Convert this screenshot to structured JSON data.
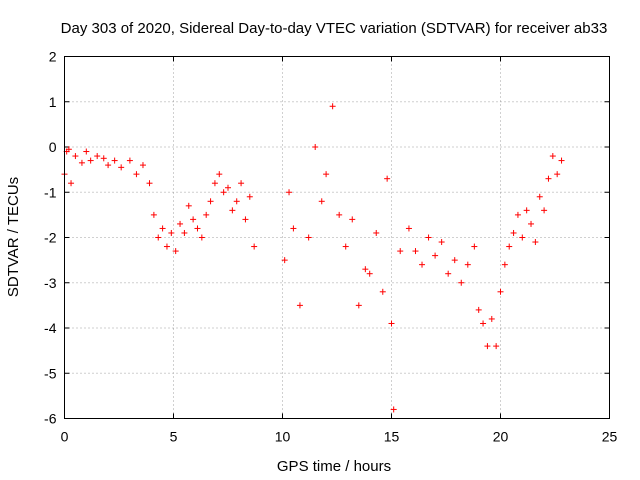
{
  "chart_data": {
    "type": "scatter",
    "title": "Day 303 of 2020, Sidereal Day-to-day VTEC variation (SDTVAR) for receiver ab33",
    "xlabel": "GPS time / hours",
    "ylabel": "SDTVAR / TECUs",
    "xlim": [
      0,
      25
    ],
    "ylim": [
      -6,
      2
    ],
    "xticks": [
      0,
      5,
      10,
      15,
      20,
      25
    ],
    "yticks": [
      -6,
      -5,
      -4,
      -3,
      -2,
      -1,
      0,
      1,
      2
    ],
    "grid": true,
    "marker": "+",
    "marker_color": "#ff0000",
    "series": [
      {
        "name": "SDTVAR",
        "x": [
          0.0,
          0.1,
          0.2,
          0.3,
          0.5,
          0.8,
          1.0,
          1.2,
          1.5,
          1.8,
          2.0,
          2.3,
          2.6,
          3.0,
          3.3,
          3.6,
          3.9,
          4.1,
          4.3,
          4.5,
          4.7,
          4.9,
          5.1,
          5.3,
          5.5,
          5.7,
          5.9,
          6.1,
          6.3,
          6.5,
          6.7,
          6.9,
          7.1,
          7.3,
          7.5,
          7.7,
          7.9,
          8.1,
          8.3,
          8.5,
          8.7,
          10.1,
          10.3,
          10.5,
          10.8,
          11.2,
          11.5,
          11.8,
          12.0,
          12.3,
          12.6,
          12.9,
          13.2,
          13.5,
          13.8,
          14.0,
          14.3,
          14.6,
          14.8,
          15.0,
          15.1,
          15.4,
          15.8,
          16.1,
          16.4,
          16.7,
          17.0,
          17.3,
          17.6,
          17.9,
          18.2,
          18.5,
          18.8,
          19.0,
          19.2,
          19.4,
          19.6,
          19.8,
          20.0,
          20.2,
          20.4,
          20.6,
          20.8,
          21.0,
          21.2,
          21.4,
          21.6,
          21.8,
          22.0,
          22.2,
          22.4,
          22.6,
          22.8
        ],
        "y": [
          -0.6,
          -0.1,
          -0.05,
          -0.8,
          -0.2,
          -0.35,
          -0.1,
          -0.3,
          -0.2,
          -0.25,
          -0.4,
          -0.3,
          -0.45,
          -0.3,
          -0.6,
          -0.4,
          -0.8,
          -1.5,
          -2.0,
          -1.8,
          -2.2,
          -1.9,
          -2.3,
          -1.7,
          -1.9,
          -1.3,
          -1.6,
          -1.8,
          -2.0,
          -1.5,
          -1.2,
          -0.8,
          -0.6,
          -1.0,
          -0.9,
          -1.4,
          -1.2,
          -0.8,
          -1.6,
          -1.1,
          -2.2,
          -2.5,
          -1.0,
          -1.8,
          -3.5,
          -2.0,
          0.0,
          -1.2,
          -0.6,
          0.9,
          -1.5,
          -2.2,
          -1.6,
          -3.5,
          -2.7,
          -2.8,
          -1.9,
          -3.2,
          -0.7,
          -3.9,
          -5.8,
          -2.3,
          -1.8,
          -2.3,
          -2.6,
          -2.0,
          -2.4,
          -2.1,
          -2.8,
          -2.5,
          -3.0,
          -2.6,
          -2.2,
          -3.6,
          -3.9,
          -4.4,
          -3.8,
          -4.4,
          -3.2,
          -2.6,
          -2.2,
          -1.9,
          -1.5,
          -2.0,
          -1.4,
          -1.7,
          -2.1,
          -1.1,
          -1.4,
          -0.7,
          -0.2,
          -0.6,
          -0.3
        ]
      }
    ]
  }
}
